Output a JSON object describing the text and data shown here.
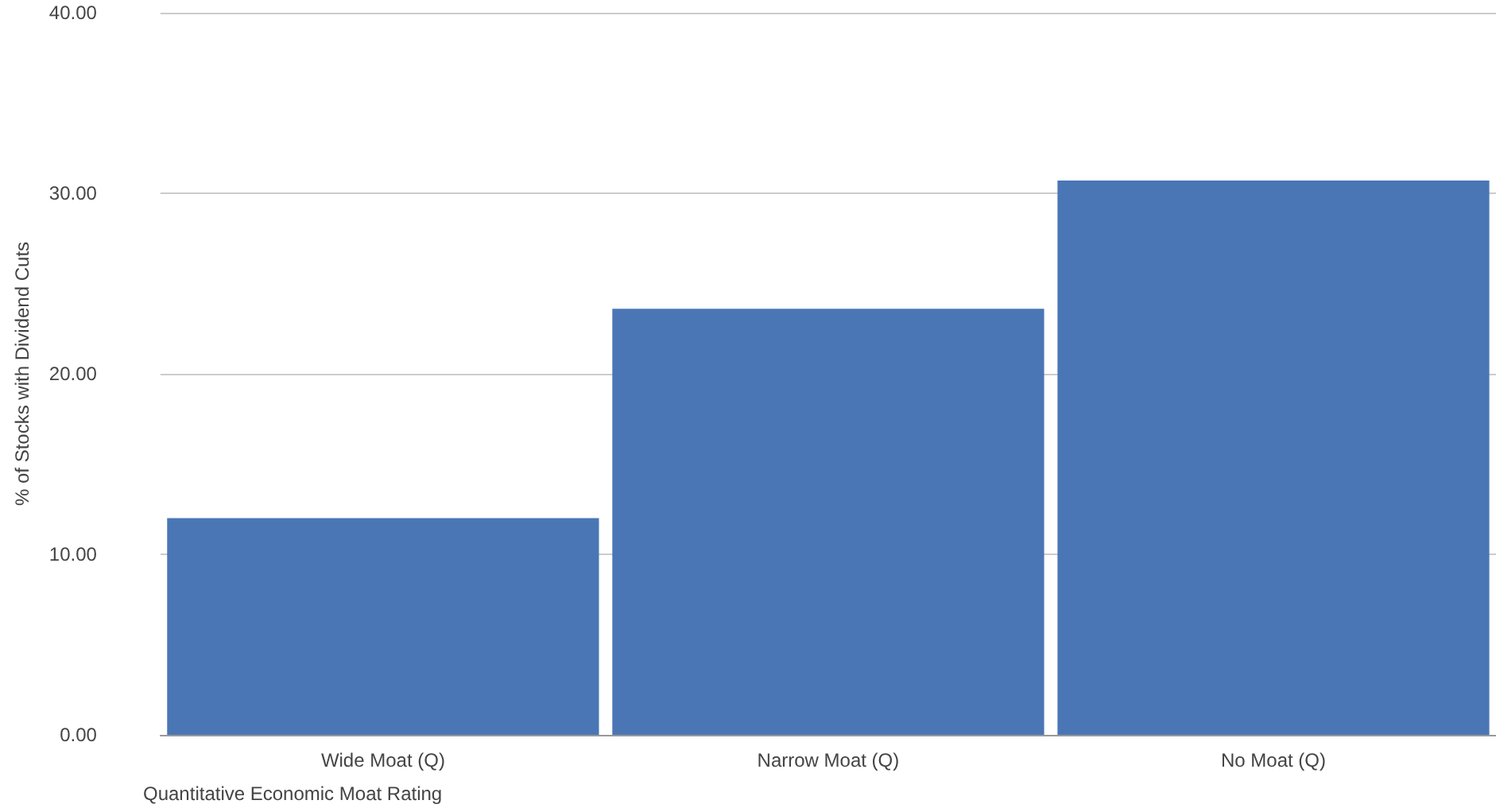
{
  "chart_data": {
    "type": "bar",
    "xlabel": "Quantitative Economic Moat Rating",
    "ylabel": "% of Stocks with Dividend Cuts",
    "categories": [
      "Wide Moat (Q)",
      "Narrow Moat (Q)",
      "No Moat (Q)"
    ],
    "values": [
      12.0,
      23.6,
      30.7
    ],
    "color": "#4a76b5",
    "ylim": [
      0,
      40
    ],
    "yticks": [
      {
        "value": 0,
        "label": "0.00"
      },
      {
        "value": 10,
        "label": "10.00"
      },
      {
        "value": 20,
        "label": "20.00"
      },
      {
        "value": 30,
        "label": "30.00"
      },
      {
        "value": 40,
        "label": "40.00"
      }
    ],
    "grid": "y"
  }
}
